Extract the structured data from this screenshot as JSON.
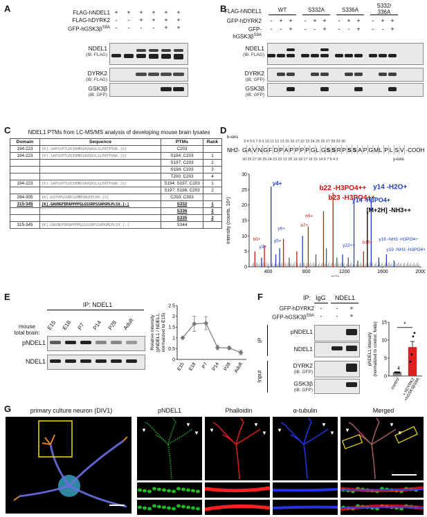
{
  "panels": {
    "A": {
      "label": "A",
      "rows": [
        {
          "name": "FLAG-hNDEL1",
          "sym": [
            "+",
            "+",
            "+",
            "+",
            "+",
            "+"
          ]
        },
        {
          "name": "FLAG-hDYRK2",
          "sym": [
            "-",
            "-",
            "+",
            "+",
            "+",
            "+"
          ]
        },
        {
          "name": "GFP-hGSK3β",
          "sup": "S9A",
          "sym": [
            "-",
            "-",
            "-",
            "-",
            "+",
            "+"
          ]
        }
      ],
      "blots": [
        {
          "name": "NDEL1",
          "ib": "(IB: FLAG)"
        },
        {
          "name": "DYRK2",
          "ib": "(IB: FLAG)"
        },
        {
          "name": "GSK3β",
          "ib": "(IB: GFP)"
        }
      ]
    },
    "B": {
      "label": "B",
      "groups": [
        "WT",
        "S332A",
        "S336A",
        "S332/\n336A"
      ],
      "rows": [
        {
          "name": "FLAG-hNDEL1",
          "sym": []
        },
        {
          "name": "GFP-hDYRK2",
          "sym": [
            "-",
            "+",
            "+",
            "-",
            "+",
            "+",
            "-",
            "+",
            "+",
            "-",
            "+",
            "+"
          ]
        },
        {
          "name": "GFP-hGSK3β",
          "sup": "S9A",
          "sym": [
            "-",
            "-",
            "+",
            "-",
            "-",
            "+",
            "-",
            "-",
            "+",
            "-",
            "-",
            "+"
          ]
        }
      ],
      "blots": [
        {
          "name": "NDEL1",
          "ib": "(IB: FLAG)"
        },
        {
          "name": "DYRK2",
          "ib": "(IB: GFP)"
        },
        {
          "name": "GSK3β",
          "ib": "(IB: GFP)"
        }
      ]
    },
    "C": {
      "label": "C",
      "title": "NDEL1 PTMs from LC-MS/MS analysis of developing mouse brain lysates",
      "headers": [
        "Domain",
        "Sequence",
        "PTMs",
        "Rank"
      ],
      "rows": [
        {
          "domain": "194-223",
          "seq": "[K].SAPSSPTLDCEKMDSAVQASLSLPATPVGK.[G]",
          "ptm": "C203",
          "rank": ""
        },
        {
          "domain": "194-223",
          "seq": "[K].SAPSSPTLDCEKMDSAVQASLSLPATPVGK.[G]",
          "ptm": "S194; C203",
          "rank": "1"
        },
        {
          "domain": "",
          "seq": "",
          "ptm": "S197; C203",
          "rank": "2"
        },
        {
          "domain": "",
          "seq": "",
          "ptm": "S198; C203",
          "rank": "3"
        },
        {
          "domain": "",
          "seq": "",
          "ptm": "T200; C203",
          "rank": "4"
        },
        {
          "domain": "194-223",
          "seq": "[K].SAPSSPTLDCEKMDSAVQASLSLPATPVGK.[G]",
          "ptm": "S194; S197; C203",
          "rank": "1"
        },
        {
          "domain": "",
          "seq": "",
          "ptm": "S197; S198; C203",
          "rank": "2"
        },
        {
          "domain": "284-305",
          "seq": "[K].KSYVPGSVNCGVMNSNGPECPR.[S]",
          "ptm": "C293; C303",
          "rank": ""
        },
        {
          "domain": "315-345",
          "seq": "[K].GAVNGFDPAPPPPGLGSSRPSSAPGMLPLSV.[-]",
          "ptm": "S332",
          "rank": "1"
        },
        {
          "domain": "",
          "seq": "",
          "ptm": "S336",
          "rank": "2"
        },
        {
          "domain": "",
          "seq": "",
          "ptm": "S335",
          "rank": "2"
        },
        {
          "domain": "315-345",
          "seq": "[K].GAVNGFDPAPPPPGLGSSRPSSAPGMLPLSV.[-]",
          "ptm": "S344",
          "rank": ""
        }
      ]
    },
    "D": {
      "label": "D",
      "b_ions_label": "b-ions",
      "y_ions_label": "y-ions",
      "nterm": "NH2-",
      "cterm": "-COOH",
      "sequence": [
        "G",
        "A",
        "V",
        "N",
        "G",
        "F",
        "D",
        "P",
        "A",
        "P",
        "P",
        "P",
        "P",
        "G",
        "L",
        "G",
        "S",
        "S",
        "R",
        "P",
        "S",
        "S",
        "A",
        "P",
        "G",
        "M",
        "L",
        "P",
        "L",
        "S",
        "V"
      ],
      "b_nums": "3  4  5  6  7  8  9 10 11 12 13 15 16 17    22 23 24 25 26 27 28 29 30",
      "y_nums": "30 29     27 26 25 24 23 22 21 20 19 18 17 16 15    14                8  7     5  4  3",
      "num14": "14",
      "ylabel": "Intensity (counts, 10⁴)",
      "xlabel": "m/z",
      "yticks": [
        "0",
        "5",
        "10",
        "15",
        "20",
        "25",
        "30"
      ],
      "xticks": [
        "400",
        "800",
        "1200",
        "1600",
        "2000"
      ],
      "annotations": [
        {
          "text": "y4+",
          "color": "#1a3bcc"
        },
        {
          "text": "b22 -H3PO4++",
          "color": "#d01010"
        },
        {
          "text": "b23 -H3PO4++",
          "color": "#d01010"
        },
        {
          "text": "y14 -H2O+",
          "color": "#1a3bcc"
        },
        {
          "text": "y14 -H3PO4+",
          "color": "#1a3bcc"
        },
        {
          "text": "[M+2H] -NH3++",
          "color": "#000"
        },
        {
          "text": "y16 -NH3 -H3PO4+",
          "color": "#1a3bcc"
        },
        {
          "text": "y19 -NH3 -H3PO4+",
          "color": "#1a3bcc"
        },
        {
          "text": "b5+",
          "color": "#d01010"
        },
        {
          "text": "y3+",
          "color": "#1a3bcc"
        },
        {
          "text": "y5+",
          "color": "#1a3bcc"
        },
        {
          "text": "y6+",
          "color": "#1a3bcc"
        },
        {
          "text": "b7+",
          "color": "#d01010"
        },
        {
          "text": "b9+",
          "color": "#d01010"
        },
        {
          "text": "y22++",
          "color": "#1a3bcc"
        },
        {
          "text": "b15+",
          "color": "#d01010"
        }
      ]
    },
    "E": {
      "label": "E",
      "ip": "IP: NDEL1",
      "sample_label": "mouse\ntotal brain:",
      "lanes": [
        "E15",
        "E18",
        "P7",
        "P14",
        "P28",
        "Adult"
      ],
      "blots": [
        {
          "name": "pNDEL1"
        },
        {
          "name": "NDEL1"
        }
      ],
      "ylabel": "Relative intensity\n(pNDEL1 / NDEL1,\nnormalized to E15)",
      "yticks": [
        "0",
        "0.5",
        "1",
        "1.5",
        "2",
        "2.5"
      ]
    },
    "F": {
      "label": "F",
      "ip": "IP:",
      "ip_igg": "IgG",
      "ip_ndel1": "NDEL1",
      "rows": [
        {
          "name": "GFP-hDYRK2",
          "sym": [
            "-",
            "-",
            "+"
          ]
        },
        {
          "name": "GFP-hGSK3β",
          "sup": "S9A",
          "sym": [
            "-",
            "-",
            "+"
          ]
        }
      ],
      "side_ip": "IP",
      "side_input": "Input",
      "blots": [
        {
          "name": "pNDEL1",
          "ib": ""
        },
        {
          "name": "NDEL1",
          "ib": ""
        },
        {
          "name": "DYRK2",
          "ib": "(IB: GFP)"
        },
        {
          "name": "GSK3β",
          "ib": "(IB: GFP)"
        }
      ],
      "ylabel": "pNDEL1 intensity\n(normalized to control, folds)",
      "yticks": [
        "0",
        "5",
        "10",
        "15"
      ],
      "sig": "*",
      "n_label": "4",
      "xcats": [
        "control",
        "+ hDYRK2\n+hGSK3βS9A"
      ]
    },
    "G": {
      "label": "G",
      "titles": [
        "primary culture neuron (DIV1)",
        "pNDEL1",
        "Phalloidin",
        "α-tubulin",
        "Merged"
      ]
    }
  },
  "chart_data": [
    {
      "type": "line",
      "panel": "E",
      "title": "",
      "xlabel": "",
      "ylabel": "Relative intensity (pNDEL1 / NDEL1, normalized to E15)",
      "categories": [
        "E15",
        "E18",
        "P7",
        "P14",
        "P28",
        "Adult"
      ],
      "series": [
        {
          "values": [
            1.0,
            1.65,
            1.68,
            0.55,
            0.53,
            0.32
          ],
          "errors": [
            0,
            0.35,
            0.3,
            0.1,
            0.08,
            0.1
          ]
        }
      ],
      "ylim": [
        0,
        2.5
      ]
    },
    {
      "type": "bar",
      "panel": "F",
      "title": "",
      "xlabel": "",
      "ylabel": "pNDEL1 intensity (normalized to control, folds)",
      "categories": [
        "control",
        "+ hDYRK2 +hGSK3βS9A"
      ],
      "series": [
        {
          "values": [
            1.0,
            8.0
          ],
          "errors": [
            0,
            1.6
          ]
        }
      ],
      "points": [
        [
          1,
          1,
          1,
          1
        ],
        [
          4,
          6,
          11,
          12
        ]
      ],
      "ylim": [
        0,
        15
      ]
    },
    {
      "type": "bar",
      "panel": "D",
      "title": "",
      "xlabel": "m/z",
      "ylabel": "Intensity (counts, 10⁴)",
      "xlim": [
        200,
        2000
      ],
      "ylim": [
        0,
        30
      ],
      "peaks": [
        {
          "x": 260,
          "y": 5,
          "color": "#d01010"
        },
        {
          "x": 330,
          "y": 3,
          "color": "#1a3bcc"
        },
        {
          "x": 360,
          "y": 7,
          "color": "#d01010"
        },
        {
          "x": 430,
          "y": 26,
          "color": "#1a3bcc"
        },
        {
          "x": 480,
          "y": 4,
          "color": "#1a3bcc"
        },
        {
          "x": 520,
          "y": 6,
          "color": "#1a3bcc"
        },
        {
          "x": 560,
          "y": 9,
          "color": "#d01010"
        },
        {
          "x": 620,
          "y": 3,
          "color": "#555"
        },
        {
          "x": 700,
          "y": 5,
          "color": "#d01010"
        },
        {
          "x": 760,
          "y": 10,
          "color": "#1a3bcc"
        },
        {
          "x": 820,
          "y": 13,
          "color": "#d01010"
        },
        {
          "x": 900,
          "y": 4,
          "color": "#555"
        },
        {
          "x": 980,
          "y": 18,
          "color": "#d01010"
        },
        {
          "x": 1010,
          "y": 6,
          "color": "#555"
        },
        {
          "x": 1080,
          "y": 24,
          "color": "#d01010"
        },
        {
          "x": 1120,
          "y": 3,
          "color": "#555"
        },
        {
          "x": 1180,
          "y": 4,
          "color": "#1a3bcc"
        },
        {
          "x": 1240,
          "y": 3,
          "color": "#555"
        },
        {
          "x": 1300,
          "y": 21,
          "color": "#1a3bcc"
        },
        {
          "x": 1340,
          "y": 2,
          "color": "#555"
        },
        {
          "x": 1400,
          "y": 5,
          "color": "#d01010"
        },
        {
          "x": 1440,
          "y": 18,
          "color": "#000"
        },
        {
          "x": 1480,
          "y": 22,
          "color": "#1a3bcc"
        },
        {
          "x": 1560,
          "y": 3,
          "color": "#1a3bcc"
        },
        {
          "x": 1640,
          "y": 4,
          "color": "#1a3bcc"
        },
        {
          "x": 1720,
          "y": 2,
          "color": "#1a3bcc"
        }
      ]
    }
  ]
}
